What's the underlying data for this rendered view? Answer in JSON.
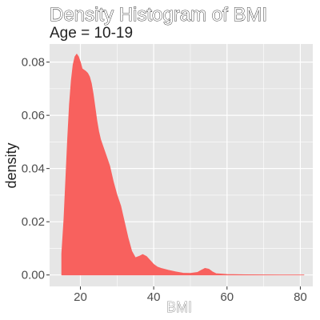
{
  "chart_data": {
    "type": "area",
    "title": "Density Histogram of BMI",
    "subtitle": "Age =  10-19",
    "xlabel": "BMI",
    "ylabel": "density",
    "xlim": [
      11.6,
      83.4
    ],
    "ylim": [
      -0.0043,
      0.0868
    ],
    "x_ticks": [
      20,
      40,
      60,
      80
    ],
    "y_ticks": [
      0.0,
      0.02,
      0.04,
      0.06,
      0.08
    ],
    "y_tick_labels": [
      "0.00",
      "0.02",
      "0.04",
      "0.06",
      "0.08"
    ],
    "grid": true,
    "fill_color": "#F8615E",
    "panel_color": "#E6E6E6",
    "grid_color": "#FFFFFF",
    "series": [
      {
        "x": [
          14.9,
          15.5,
          16.0,
          16.5,
          17.0,
          17.5,
          18.0,
          18.5,
          19.0,
          19.5,
          20.0,
          20.5,
          21.0,
          21.5,
          22.0,
          22.5,
          23.0,
          23.5,
          24.0,
          24.5,
          25.0,
          25.5,
          26.0,
          26.5,
          27.0,
          27.5,
          28.0,
          29.0,
          30.0,
          31.0,
          32.0,
          33.0,
          34.0,
          35.0,
          36.0,
          37.0,
          38.0,
          39.0,
          40.0,
          41.0,
          42.0,
          44.0,
          46.0,
          48.0,
          50.0,
          52.0,
          53.0,
          54.0,
          55.0,
          56.0,
          57.0,
          60.0,
          65.0,
          70.0,
          75.0,
          81.0
        ],
        "y": [
          0.008,
          0.021,
          0.036,
          0.051,
          0.064,
          0.073,
          0.079,
          0.082,
          0.083,
          0.082,
          0.08,
          0.0775,
          0.077,
          0.0765,
          0.0758,
          0.0745,
          0.072,
          0.068,
          0.063,
          0.058,
          0.054,
          0.051,
          0.049,
          0.047,
          0.045,
          0.043,
          0.041,
          0.035,
          0.03,
          0.026,
          0.02,
          0.014,
          0.009,
          0.0065,
          0.007,
          0.0077,
          0.007,
          0.0055,
          0.004,
          0.003,
          0.0025,
          0.0018,
          0.0012,
          0.0007,
          0.0006,
          0.001,
          0.0018,
          0.0025,
          0.0022,
          0.0012,
          0.0005,
          0.0002,
          0.0001,
          5e-05,
          2e-05,
          0.0
        ]
      }
    ]
  }
}
